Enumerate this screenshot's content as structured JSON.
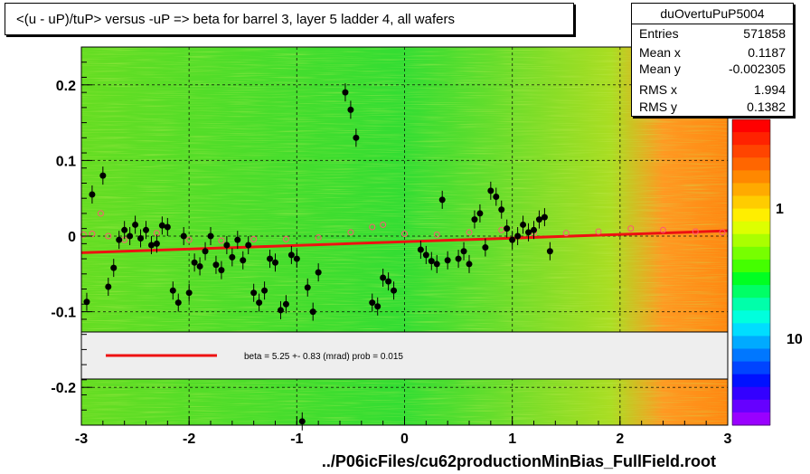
{
  "title": "<(u - uP)/tuP> versus  -uP => beta for barrel 3, layer 5 ladder 4, all wafers",
  "stats": {
    "name": "duOvertuPuP5004",
    "rows": [
      {
        "label": "Entries",
        "value": "571858"
      },
      {
        "label": "Mean x",
        "value": "0.1187"
      },
      {
        "label": "Mean y",
        "value": "-0.002305"
      },
      {
        "label": "RMS x",
        "value": "1.994"
      },
      {
        "label": "RMS y",
        "value": "0.1382"
      }
    ]
  },
  "footer": "../P06icFiles/cu62productionMinBias_FullField.root",
  "colors": {
    "fit_line": "#ee1111",
    "points": "#000000",
    "open_circles": "#ff5577",
    "heatmap_background": "#55dd22",
    "legend_background": "#eeeeee"
  },
  "chart_data": {
    "type": "scatter",
    "title": "<(u - uP)/tuP> versus  -uP => beta for barrel 3, layer 5 ladder 4, all wafers",
    "xlim": [
      -3,
      3
    ],
    "ylim": [
      -0.25,
      0.25
    ],
    "x_ticks": [
      -3,
      -2,
      -1,
      0,
      1,
      2,
      3
    ],
    "x_tick_labels": [
      "-3",
      "-2",
      "-1",
      "0",
      "1",
      "2",
      "3"
    ],
    "y_ticks": [
      -0.2,
      -0.1,
      0,
      0.1,
      0.2
    ],
    "y_tick_labels": [
      "-0.2",
      "-0.1",
      "0",
      "0.1",
      "0.2"
    ],
    "colorbar_labels": [
      "1",
      "10"
    ],
    "grid": true,
    "legend_text": "beta =    5.25 +-  0.83 (mrad) prob = 0.015",
    "fit_line": {
      "x": [
        -3,
        3
      ],
      "y": [
        -0.022,
        0.007
      ]
    },
    "series": [
      {
        "marker": "filled-circle",
        "points": [
          [
            -2.95,
            -0.087
          ],
          [
            -2.9,
            0.055
          ],
          [
            -2.8,
            0.08
          ],
          [
            -2.75,
            -0.067
          ],
          [
            -2.7,
            -0.042
          ],
          [
            -2.65,
            -0.005
          ],
          [
            -2.6,
            0.008
          ],
          [
            -2.55,
            0.0
          ],
          [
            -2.5,
            0.015
          ],
          [
            -2.45,
            -0.003
          ],
          [
            -2.4,
            0.008
          ],
          [
            -2.35,
            -0.012
          ],
          [
            -2.3,
            -0.01
          ],
          [
            -2.25,
            0.014
          ],
          [
            -2.2,
            0.012
          ],
          [
            -2.15,
            -0.072
          ],
          [
            -2.1,
            -0.088
          ],
          [
            -2.05,
            0.0
          ],
          [
            -2.0,
            -0.075
          ],
          [
            -1.95,
            -0.035
          ],
          [
            -1.9,
            -0.04
          ],
          [
            -1.85,
            -0.02
          ],
          [
            -1.8,
            0.0
          ],
          [
            -1.75,
            -0.038
          ],
          [
            -1.7,
            -0.045
          ],
          [
            -1.65,
            -0.012
          ],
          [
            -1.6,
            -0.028
          ],
          [
            -1.55,
            -0.005
          ],
          [
            -1.5,
            -0.032
          ],
          [
            -1.45,
            -0.012
          ],
          [
            -1.4,
            -0.075
          ],
          [
            -1.35,
            -0.088
          ],
          [
            -1.3,
            -0.072
          ],
          [
            -1.25,
            -0.03
          ],
          [
            -1.2,
            -0.035
          ],
          [
            -1.15,
            -0.098
          ],
          [
            -1.1,
            -0.09
          ],
          [
            -1.05,
            -0.025
          ],
          [
            -1.0,
            -0.03
          ],
          [
            -0.95,
            -0.245
          ],
          [
            -0.9,
            -0.068
          ],
          [
            -0.85,
            -0.1
          ],
          [
            -0.8,
            -0.048
          ],
          [
            -0.55,
            0.19
          ],
          [
            -0.5,
            0.167
          ],
          [
            -0.45,
            0.13
          ],
          [
            -0.3,
            -0.088
          ],
          [
            -0.25,
            -0.093
          ],
          [
            -0.2,
            -0.055
          ],
          [
            -0.15,
            -0.06
          ],
          [
            -0.1,
            -0.072
          ],
          [
            0.15,
            -0.018
          ],
          [
            0.2,
            -0.025
          ],
          [
            0.25,
            -0.033
          ],
          [
            0.3,
            -0.037
          ],
          [
            0.35,
            0.048
          ],
          [
            0.4,
            -0.032
          ],
          [
            0.5,
            -0.03
          ],
          [
            0.55,
            -0.02
          ],
          [
            0.6,
            -0.037
          ],
          [
            0.65,
            0.022
          ],
          [
            0.7,
            0.03
          ],
          [
            0.75,
            -0.015
          ],
          [
            0.8,
            0.06
          ],
          [
            0.85,
            0.052
          ],
          [
            0.9,
            0.035
          ],
          [
            0.95,
            0.01
          ],
          [
            1.0,
            -0.005
          ],
          [
            1.05,
            0.0
          ],
          [
            1.1,
            0.015
          ],
          [
            1.15,
            0.005
          ],
          [
            1.2,
            0.008
          ],
          [
            1.25,
            0.022
          ],
          [
            1.3,
            0.025
          ],
          [
            1.35,
            -0.02
          ]
        ]
      },
      {
        "marker": "open-circle",
        "points": [
          [
            -2.98,
            0.002
          ],
          [
            -2.9,
            0.003
          ],
          [
            -2.82,
            0.03
          ],
          [
            -2.75,
            0.0
          ],
          [
            -2.6,
            -0.005
          ],
          [
            -2.3,
            0.004
          ],
          [
            -2.0,
            -0.005
          ],
          [
            -1.7,
            -0.006
          ],
          [
            -1.4,
            -0.004
          ],
          [
            -1.1,
            -0.004
          ],
          [
            -0.8,
            -0.002
          ],
          [
            -0.5,
            0.005
          ],
          [
            -0.3,
            0.012
          ],
          [
            -0.2,
            0.015
          ],
          [
            0.0,
            0.003
          ],
          [
            0.3,
            0.002
          ],
          [
            0.6,
            0.005
          ],
          [
            0.9,
            0.008
          ],
          [
            1.2,
            0.005
          ],
          [
            1.5,
            0.004
          ],
          [
            1.8,
            0.006
          ],
          [
            2.1,
            0.01
          ],
          [
            2.4,
            0.008
          ],
          [
            2.7,
            0.006
          ],
          [
            2.95,
            0.005
          ]
        ]
      }
    ]
  }
}
